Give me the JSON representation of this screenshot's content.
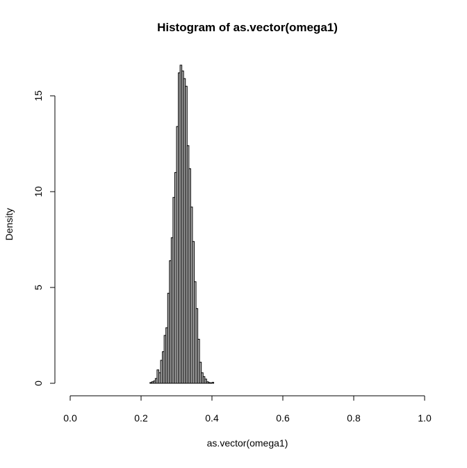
{
  "chart_data": {
    "type": "bar",
    "title": "Histogram of as.vector(omega1)",
    "xlabel": "as.vector(omega1)",
    "ylabel": "Density",
    "xlim": [
      0,
      1
    ],
    "ylim": [
      0,
      16.5
    ],
    "bin_width": 0.005,
    "x_ticks": [
      "0.0",
      "0.2",
      "0.4",
      "0.6",
      "0.8",
      "1.0"
    ],
    "y_ticks": [
      "0",
      "5",
      "10",
      "15"
    ],
    "bars": [
      {
        "x": 0.225,
        "y": 0.04
      },
      {
        "x": 0.23,
        "y": 0.08
      },
      {
        "x": 0.235,
        "y": 0.12
      },
      {
        "x": 0.24,
        "y": 0.25
      },
      {
        "x": 0.245,
        "y": 0.7
      },
      {
        "x": 0.25,
        "y": 0.55
      },
      {
        "x": 0.255,
        "y": 1.2
      },
      {
        "x": 0.26,
        "y": 1.65
      },
      {
        "x": 0.265,
        "y": 2.5
      },
      {
        "x": 0.27,
        "y": 2.9
      },
      {
        "x": 0.275,
        "y": 4.7
      },
      {
        "x": 0.28,
        "y": 6.4
      },
      {
        "x": 0.285,
        "y": 7.6
      },
      {
        "x": 0.29,
        "y": 9.7
      },
      {
        "x": 0.295,
        "y": 11.0
      },
      {
        "x": 0.3,
        "y": 13.4
      },
      {
        "x": 0.305,
        "y": 16.2
      },
      {
        "x": 0.31,
        "y": 16.6
      },
      {
        "x": 0.315,
        "y": 16.3
      },
      {
        "x": 0.32,
        "y": 15.9
      },
      {
        "x": 0.325,
        "y": 15.5
      },
      {
        "x": 0.33,
        "y": 12.4
      },
      {
        "x": 0.335,
        "y": 11.2
      },
      {
        "x": 0.34,
        "y": 9.2
      },
      {
        "x": 0.345,
        "y": 7.4
      },
      {
        "x": 0.35,
        "y": 5.3
      },
      {
        "x": 0.355,
        "y": 3.9
      },
      {
        "x": 0.36,
        "y": 2.3
      },
      {
        "x": 0.365,
        "y": 1.1
      },
      {
        "x": 0.37,
        "y": 0.55
      },
      {
        "x": 0.375,
        "y": 0.35
      },
      {
        "x": 0.38,
        "y": 0.22
      },
      {
        "x": 0.385,
        "y": 0.08
      },
      {
        "x": 0.39,
        "y": 0.04
      },
      {
        "x": 0.395,
        "y": 0.02
      },
      {
        "x": 0.4,
        "y": 0.05
      }
    ]
  }
}
